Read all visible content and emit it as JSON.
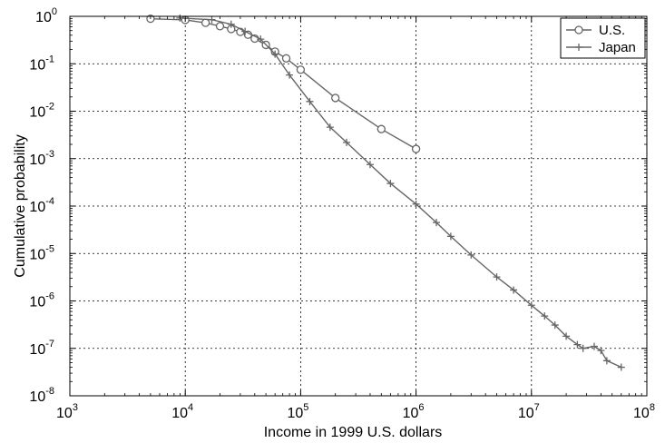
{
  "chart_data": {
    "type": "line",
    "x_scale": "log",
    "y_scale": "log",
    "xlim": [
      1000,
      100000000
    ],
    "ylim": [
      1e-08,
      1
    ],
    "grid": true,
    "legend_position": "top-right",
    "xlabel": "Income in 1999 U.S. dollars",
    "ylabel": "Cumulative probability",
    "x_ticks": [
      {
        "base": "10",
        "exp": "3"
      },
      {
        "base": "10",
        "exp": "4"
      },
      {
        "base": "10",
        "exp": "5"
      },
      {
        "base": "10",
        "exp": "6"
      },
      {
        "base": "10",
        "exp": "7"
      },
      {
        "base": "10",
        "exp": "8"
      }
    ],
    "y_ticks": [
      {
        "base": "10",
        "exp": "0"
      },
      {
        "base": "10",
        "exp": "-1"
      },
      {
        "base": "10",
        "exp": "-2"
      },
      {
        "base": "10",
        "exp": "-3"
      },
      {
        "base": "10",
        "exp": "-4"
      },
      {
        "base": "10",
        "exp": "-5"
      },
      {
        "base": "10",
        "exp": "-6"
      },
      {
        "base": "10",
        "exp": "-7"
      },
      {
        "base": "10",
        "exp": "-8"
      }
    ],
    "series": [
      {
        "name": "U.S.",
        "marker": "circle",
        "color": "#666666",
        "x": [
          5000,
          10000,
          15000,
          20000,
          25000,
          30000,
          35000,
          40000,
          50000,
          60000,
          75000,
          100000,
          200000,
          500000,
          1000000
        ],
        "y": [
          0.89,
          0.84,
          0.73,
          0.62,
          0.54,
          0.47,
          0.41,
          0.34,
          0.25,
          0.18,
          0.13,
          0.075,
          0.019,
          0.0042,
          0.0016
        ]
      },
      {
        "name": "Japan",
        "marker": "plus",
        "color": "#666666",
        "x": [
          9000,
          17000,
          25000,
          33000,
          45000,
          60000,
          80000,
          120000,
          180000,
          250000,
          400000,
          600000,
          1000000,
          1500000,
          2000000,
          3000000,
          5000000,
          7000000,
          10000000,
          13000000,
          16000000,
          20000000,
          25000000,
          28000000,
          35000000,
          40000000,
          45000000,
          60000000
        ],
        "y": [
          0.92,
          0.85,
          0.68,
          0.48,
          0.33,
          0.16,
          0.058,
          0.016,
          0.0046,
          0.0022,
          0.00075,
          0.0003,
          0.00011,
          4.5e-05,
          2.3e-05,
          9.3e-06,
          3.2e-06,
          1.7e-06,
          8.1e-07,
          4.8e-07,
          3.1e-07,
          1.8e-07,
          1.2e-07,
          1e-07,
          1.1e-07,
          9e-08,
          5.5e-08,
          4e-08
        ]
      }
    ]
  }
}
